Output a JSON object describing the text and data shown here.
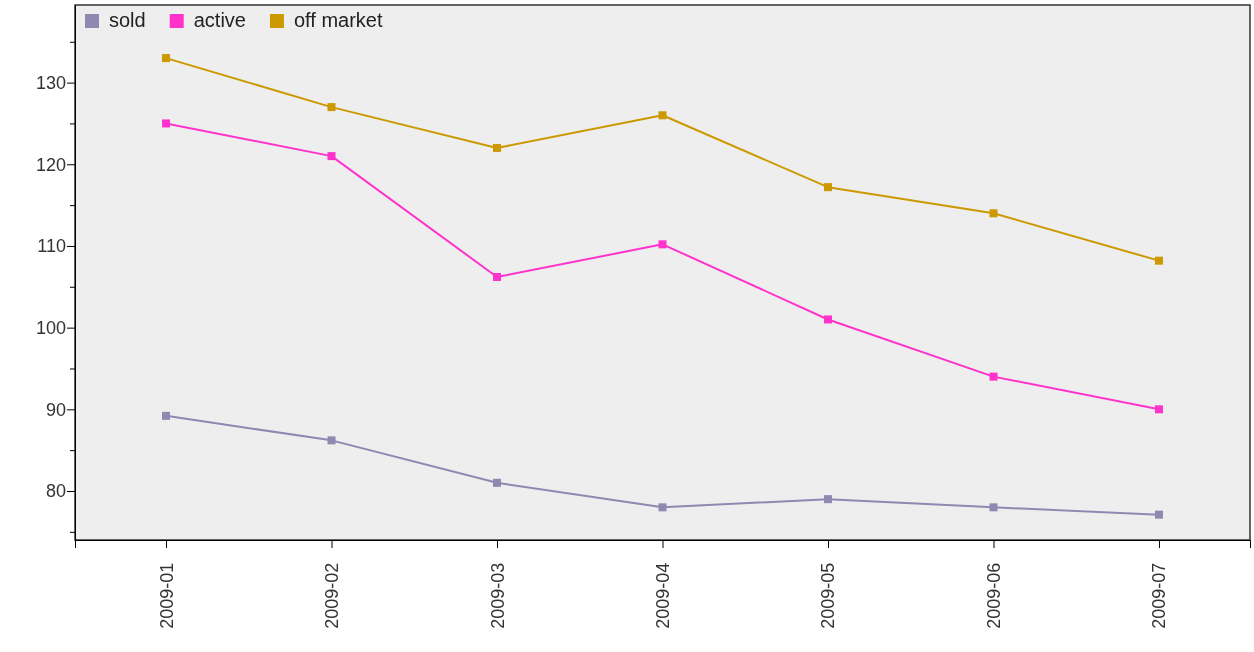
{
  "chart_data": {
    "type": "line",
    "categories": [
      "2009-01",
      "2009-02",
      "2009-03",
      "2009-04",
      "2009-05",
      "2009-06",
      "2009-07"
    ],
    "series": [
      {
        "name": "sold",
        "color": "#8f88b0",
        "values": [
          89.2,
          86.2,
          81,
          78,
          79,
          78,
          77.1
        ]
      },
      {
        "name": "active",
        "color": "#ff33cc",
        "values": [
          125,
          121,
          106.2,
          110.2,
          101,
          94,
          90
        ]
      },
      {
        "name": "off market",
        "color": "#cc9900",
        "values": [
          133,
          127,
          122,
          126,
          117.2,
          114,
          108.2
        ]
      }
    ],
    "ylim": [
      74,
      139.5
    ],
    "yticks": [
      {
        "value": 75,
        "label": null
      },
      80,
      {
        "value": 85,
        "label": null
      },
      90,
      {
        "value": 95,
        "label": null
      },
      100,
      {
        "value": 105,
        "label": null
      },
      110,
      {
        "value": 115,
        "label": null
      },
      120,
      {
        "value": 125,
        "label": null
      },
      130,
      {
        "value": 135,
        "label": null
      }
    ],
    "legend": "top left",
    "marker": "square",
    "line_style": "solid"
  }
}
